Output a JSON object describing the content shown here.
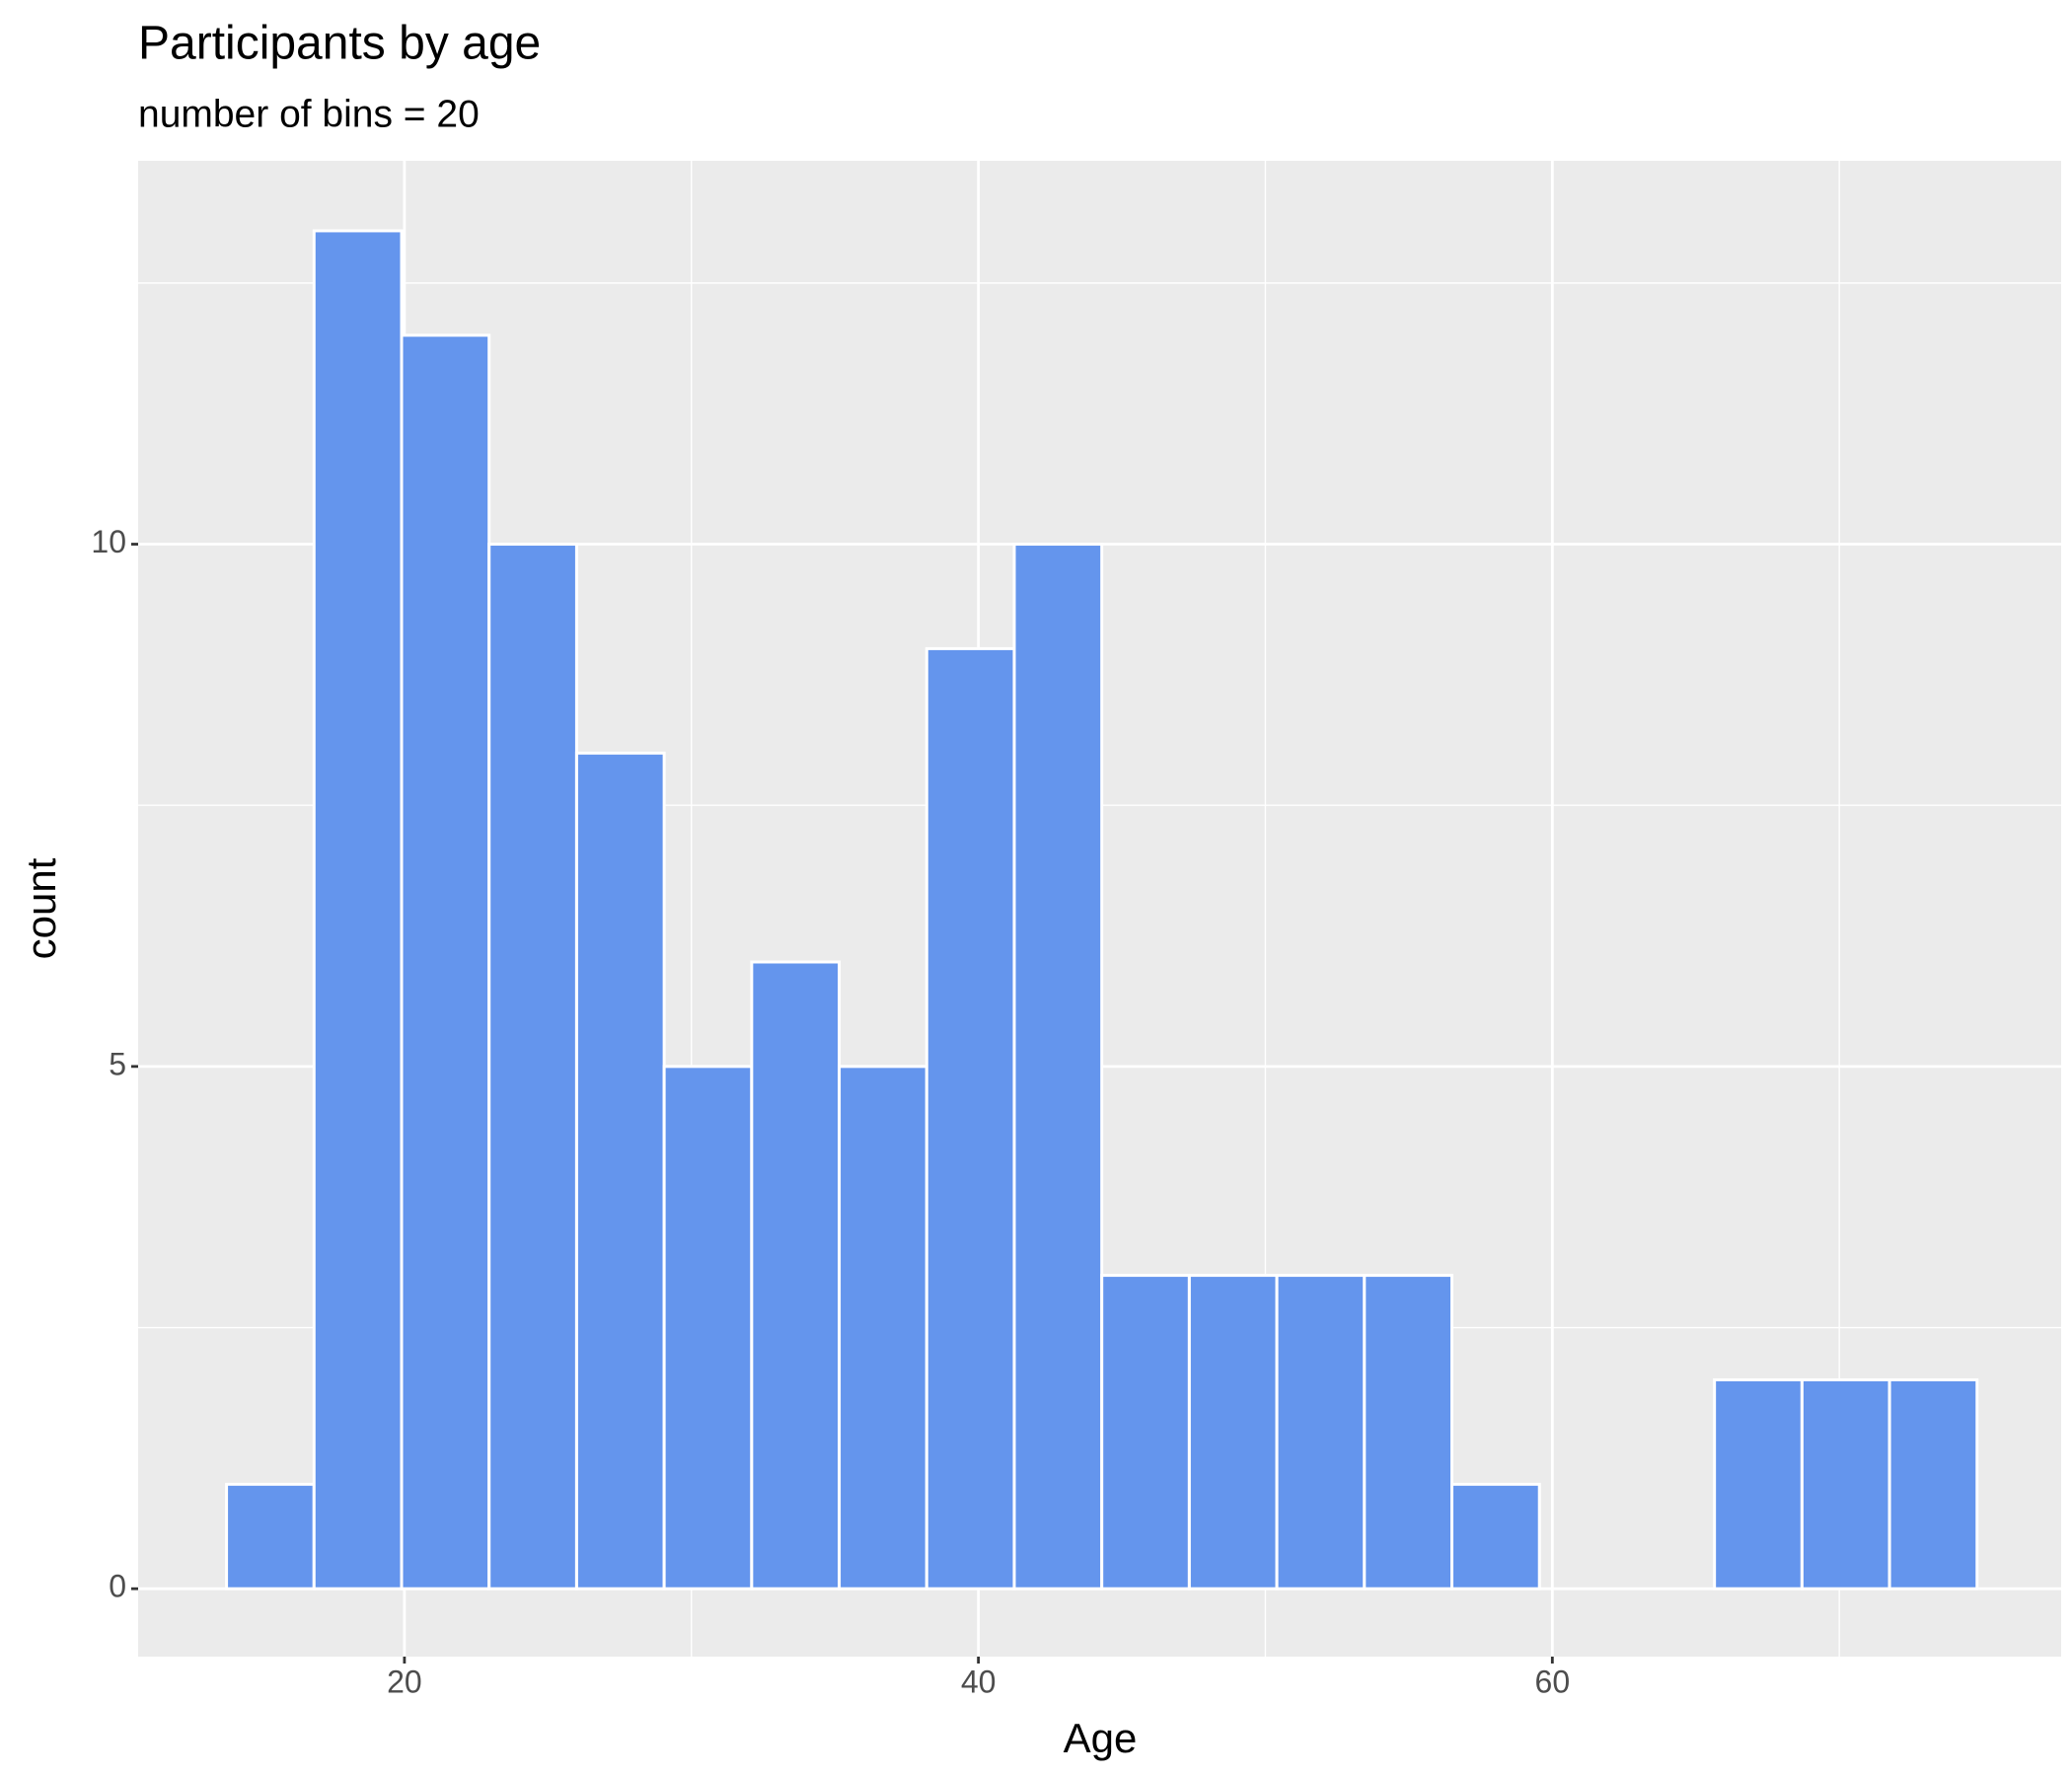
{
  "chart_data": {
    "type": "histogram",
    "title": "Participants by age",
    "subtitle": "number of bins = 20",
    "x_label": "Age",
    "y_label": "count",
    "bins": [
      13.8,
      16.85,
      19.9,
      22.95,
      26.0,
      29.05,
      32.1,
      35.15,
      38.2,
      41.25,
      44.3,
      47.35,
      50.4,
      53.45,
      56.5,
      59.55,
      62.6,
      65.65,
      68.7,
      71.75,
      74.8
    ],
    "values": [
      1,
      13,
      12,
      10,
      8,
      5,
      6,
      5,
      9,
      10,
      3,
      3,
      3,
      3,
      1,
      0,
      0,
      2,
      2,
      2
    ],
    "color": "#6495ED",
    "xlim": [
      10.72,
      77.73
    ],
    "ylim": [
      -0.65,
      13.67
    ],
    "xticks": [
      20,
      40,
      60
    ],
    "yticks": [
      0,
      5,
      10
    ],
    "x_minor_grid": [
      30,
      50,
      70
    ],
    "y_minor_grid": [
      2.5,
      7.5,
      12.5
    ],
    "grid": true
  }
}
